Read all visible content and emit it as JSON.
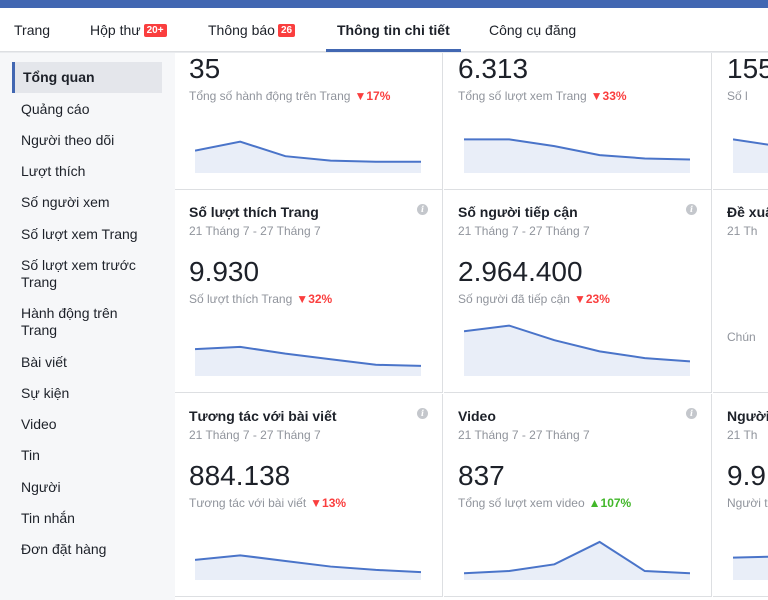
{
  "tabs": [
    {
      "label": "Trang"
    },
    {
      "label": "Hộp thư",
      "badge": "20+"
    },
    {
      "label": "Thông báo",
      "badge": "26"
    },
    {
      "label": "Thông tin chi tiết",
      "active": true
    },
    {
      "label": "Công cụ đăng"
    }
  ],
  "sidebar": {
    "items": [
      {
        "label": "Tổng quan",
        "active": true
      },
      {
        "label": "Quảng cáo"
      },
      {
        "label": "Người theo dõi"
      },
      {
        "label": "Lượt thích"
      },
      {
        "label": "Số người xem"
      },
      {
        "label": "Số lượt xem Trang"
      },
      {
        "label": "Số lượt xem trước Trang"
      },
      {
        "label": "Hành động trên Trang"
      },
      {
        "label": "Bài viết"
      },
      {
        "label": "Sự kiện"
      },
      {
        "label": "Video"
      },
      {
        "label": "Tin"
      },
      {
        "label": "Người"
      },
      {
        "label": "Tin nhắn"
      },
      {
        "label": "Đơn đặt hàng"
      }
    ]
  },
  "cards": [
    {
      "title": "",
      "date": "",
      "value": "35",
      "sub": "Tổng số hành động trên Trang",
      "delta": "17%",
      "trend": "down",
      "spark": [
        20,
        28,
        15,
        11,
        10,
        10
      ]
    },
    {
      "title": "",
      "date": "",
      "value": "6.313",
      "sub": "Tổng số lượt xem Trang",
      "delta": "33%",
      "trend": "down",
      "spark": [
        30,
        30,
        24,
        16,
        13,
        12
      ]
    },
    {
      "title": "",
      "date": "",
      "value": "155",
      "sub": "Số l",
      "delta": "",
      "trend": "",
      "spark": [
        30,
        24
      ]
    },
    {
      "title": "Số lượt thích Trang",
      "date": "21 Tháng 7 - 27 Tháng 7",
      "value": "9.930",
      "sub": "Số lượt thích Trang",
      "delta": "32%",
      "trend": "down",
      "spark": [
        24,
        26,
        20,
        15,
        10,
        9
      ]
    },
    {
      "title": "Số người tiếp cận",
      "date": "21 Tháng 7 - 27 Tháng 7",
      "value": "2.964.400",
      "sub": "Số người đã tiếp cận",
      "delta": "23%",
      "trend": "down",
      "spark": [
        40,
        45,
        32,
        22,
        16,
        13
      ]
    },
    {
      "title": "Đề xuấ",
      "date": "21 Th",
      "value": "",
      "sub": "",
      "delta": "",
      "trend": "",
      "note": "Chún",
      "spark": []
    },
    {
      "title": "Tương tác với bài viết",
      "date": "21 Tháng 7 - 27 Tháng 7",
      "value": "884.138",
      "sub": "Tương tác với bài viết",
      "delta": "13%",
      "trend": "down",
      "spark": [
        18,
        22,
        17,
        12,
        9,
        7
      ]
    },
    {
      "title": "Video",
      "date": "21 Tháng 7 - 27 Tháng 7",
      "value": "837",
      "sub": "Tổng số lượt xem video",
      "delta": "107%",
      "trend": "up",
      "spark": [
        6,
        8,
        14,
        34,
        8,
        6
      ]
    },
    {
      "title": "Người",
      "date": "21 Th",
      "value": "9.9",
      "sub": "Người t",
      "delta": "",
      "trend": "",
      "spark": [
        20,
        21
      ]
    }
  ],
  "colors": {
    "accent": "#4267b2",
    "down": "#fa3e3e",
    "up": "#42b72a",
    "spark_line": "#4a74c9",
    "spark_fill": "#e9eef8"
  }
}
